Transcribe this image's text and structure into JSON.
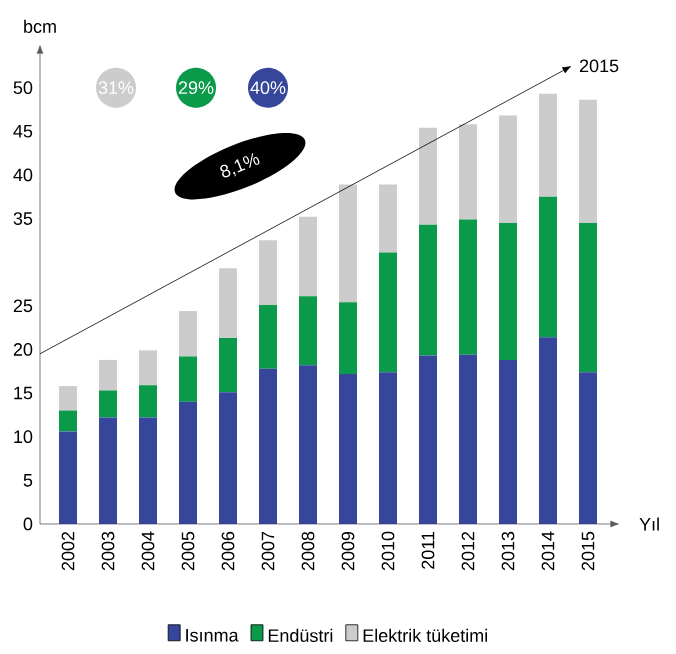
{
  "chart_data": {
    "type": "bar",
    "stacked": true,
    "ylabel": "bcm",
    "xlabel": "Yıl",
    "categories": [
      "2002",
      "2003",
      "2004",
      "2005",
      "2006",
      "2007",
      "2008",
      "2009",
      "2010",
      "2011",
      "2012",
      "2013",
      "2014",
      "2015"
    ],
    "series": [
      {
        "name": "Isınma",
        "color": "#36479b",
        "values": [
          10.6,
          12.2,
          12.2,
          14.0,
          15.1,
          17.8,
          18.2,
          17.2,
          17.4,
          19.3,
          19.4,
          18.8,
          21.4,
          17.4
        ]
      },
      {
        "name": "Endüstri",
        "color": "#0a9a4a",
        "values": [
          2.4,
          3.1,
          3.7,
          5.2,
          6.2,
          7.3,
          7.9,
          8.2,
          13.7,
          15.0,
          15.5,
          15.7,
          16.1,
          17.1
        ]
      },
      {
        "name": "Elektrik tüketimi",
        "color": "#cccccc",
        "values": [
          2.8,
          3.5,
          4.0,
          5.2,
          8.0,
          7.4,
          9.1,
          13.5,
          7.8,
          11.1,
          10.9,
          12.3,
          11.8,
          14.1
        ]
      }
    ],
    "ylim": [
      0,
      55
    ],
    "yticks": [
      0,
      5,
      10,
      15,
      20,
      25,
      35,
      40,
      45,
      50
    ],
    "annotations": [
      "31%",
      "29%",
      "40%",
      "8,1%",
      "2015"
    ],
    "legend": "bottom",
    "grid": false
  }
}
